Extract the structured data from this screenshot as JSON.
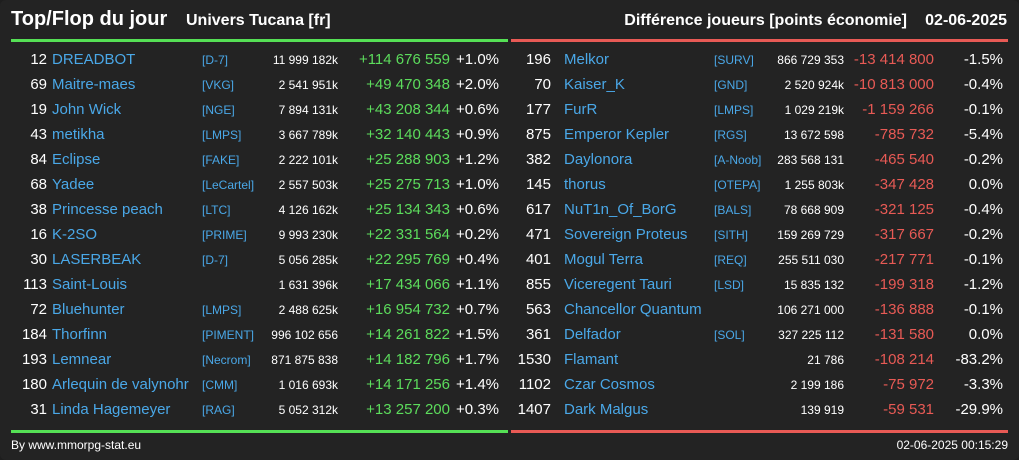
{
  "header": {
    "title": "Top/Flop du jour",
    "universe": "Univers Tucana [fr]",
    "metric": "Différence joueurs [points économie]",
    "date": "02-06-2025"
  },
  "colors": {
    "top": "#55e055",
    "flop": "#e85a55",
    "name": "#4aa8e8"
  },
  "top": [
    {
      "rank": "12",
      "name": "DREADBOT",
      "tag": "[D-7]",
      "points": "11 999 182k",
      "diff": "+114 676 559",
      "pct": "+1.0%"
    },
    {
      "rank": "69",
      "name": "Maitre-maes",
      "tag": "[VKG]",
      "points": "2 541 951k",
      "diff": "+49 470 348",
      "pct": "+2.0%"
    },
    {
      "rank": "19",
      "name": "John Wick",
      "tag": "[NGE]",
      "points": "7 894 131k",
      "diff": "+43 208 344",
      "pct": "+0.6%"
    },
    {
      "rank": "43",
      "name": "metikha",
      "tag": "[LMPS]",
      "points": "3 667 789k",
      "diff": "+32 140 443",
      "pct": "+0.9%"
    },
    {
      "rank": "84",
      "name": "Eclipse",
      "tag": "[FAKE]",
      "points": "2 222 101k",
      "diff": "+25 288 903",
      "pct": "+1.2%"
    },
    {
      "rank": "68",
      "name": "Yadee",
      "tag": "[LeCartel]",
      "points": "2 557 503k",
      "diff": "+25 275 713",
      "pct": "+1.0%"
    },
    {
      "rank": "38",
      "name": "Princesse peach",
      "tag": "[LTC]",
      "points": "4 126 162k",
      "diff": "+25 134 343",
      "pct": "+0.6%"
    },
    {
      "rank": "16",
      "name": "K-2SO",
      "tag": "[PRIME]",
      "points": "9 993 230k",
      "diff": "+22 331 564",
      "pct": "+0.2%"
    },
    {
      "rank": "30",
      "name": "LASERBEAK",
      "tag": "[D-7]",
      "points": "5 056 285k",
      "diff": "+22 295 769",
      "pct": "+0.4%"
    },
    {
      "rank": "113",
      "name": "Saint-Louis",
      "tag": "",
      "points": "1 631 396k",
      "diff": "+17 434 066",
      "pct": "+1.1%"
    },
    {
      "rank": "72",
      "name": "Bluehunter",
      "tag": "[LMPS]",
      "points": "2 488 625k",
      "diff": "+16 954 732",
      "pct": "+0.7%"
    },
    {
      "rank": "184",
      "name": "Thorfinn",
      "tag": "[PIMENT]",
      "points": "996 102 656",
      "diff": "+14 261 822",
      "pct": "+1.5%"
    },
    {
      "rank": "193",
      "name": "Lemnear",
      "tag": "[Necrom]",
      "points": "871 875 838",
      "diff": "+14 182 796",
      "pct": "+1.7%"
    },
    {
      "rank": "180",
      "name": "Arlequin de valynohr",
      "tag": "[CMM]",
      "points": "1 016 693k",
      "diff": "+14 171 256",
      "pct": "+1.4%"
    },
    {
      "rank": "31",
      "name": "Linda Hagemeyer",
      "tag": "[RAG]",
      "points": "5 052 312k",
      "diff": "+13 257 200",
      "pct": "+0.3%"
    }
  ],
  "flop": [
    {
      "rank": "196",
      "name": "Melkor",
      "tag": "[SURV]",
      "points": "866 729 353",
      "diff": "-13 414 800",
      "pct": "-1.5%"
    },
    {
      "rank": "70",
      "name": "Kaiser_K",
      "tag": "[GND]",
      "points": "2 520 924k",
      "diff": "-10 813 000",
      "pct": "-0.4%"
    },
    {
      "rank": "177",
      "name": "FurR",
      "tag": "[LMPS]",
      "points": "1 029 219k",
      "diff": "-1 159 266",
      "pct": "-0.1%"
    },
    {
      "rank": "875",
      "name": "Emperor Kepler",
      "tag": "[RGS]",
      "points": "13 672 598",
      "diff": "-785 732",
      "pct": "-5.4%"
    },
    {
      "rank": "382",
      "name": "Daylonora",
      "tag": "[A-Noob]",
      "points": "283 568 131",
      "diff": "-465 540",
      "pct": "-0.2%"
    },
    {
      "rank": "145",
      "name": "thorus",
      "tag": "[OTEPA]",
      "points": "1 255 803k",
      "diff": "-347 428",
      "pct": "0.0%"
    },
    {
      "rank": "617",
      "name": "NuT1n_Of_BorG",
      "tag": "[BALS]",
      "points": "78 668 909",
      "diff": "-321 125",
      "pct": "-0.4%"
    },
    {
      "rank": "471",
      "name": "Sovereign Proteus",
      "tag": "[SITH]",
      "points": "159 269 729",
      "diff": "-317 667",
      "pct": "-0.2%"
    },
    {
      "rank": "401",
      "name": "Mogul Terra",
      "tag": "[REQ]",
      "points": "255 511 030",
      "diff": "-217 771",
      "pct": "-0.1%"
    },
    {
      "rank": "855",
      "name": "Viceregent Tauri",
      "tag": "[LSD]",
      "points": "15 835 132",
      "diff": "-199 318",
      "pct": "-1.2%"
    },
    {
      "rank": "563",
      "name": "Chancellor Quantum",
      "tag": "",
      "points": "106 271 000",
      "diff": "-136 888",
      "pct": "-0.1%"
    },
    {
      "rank": "361",
      "name": "Delfador",
      "tag": "[SOL]",
      "points": "327 225 112",
      "diff": "-131 580",
      "pct": "0.0%"
    },
    {
      "rank": "1530",
      "name": "Flamant",
      "tag": "",
      "points": "21 786",
      "diff": "-108 214",
      "pct": "-83.2%"
    },
    {
      "rank": "1102",
      "name": "Czar Cosmos",
      "tag": "",
      "points": "2 199 186",
      "diff": "-75 972",
      "pct": "-3.3%"
    },
    {
      "rank": "1407",
      "name": "Dark Malgus",
      "tag": "",
      "points": "139 919",
      "diff": "-59 531",
      "pct": "-29.9%"
    }
  ],
  "footer": {
    "credit": "By www.mmorpg-stat.eu",
    "timestamp": "02-06-2025 00:15:29"
  }
}
